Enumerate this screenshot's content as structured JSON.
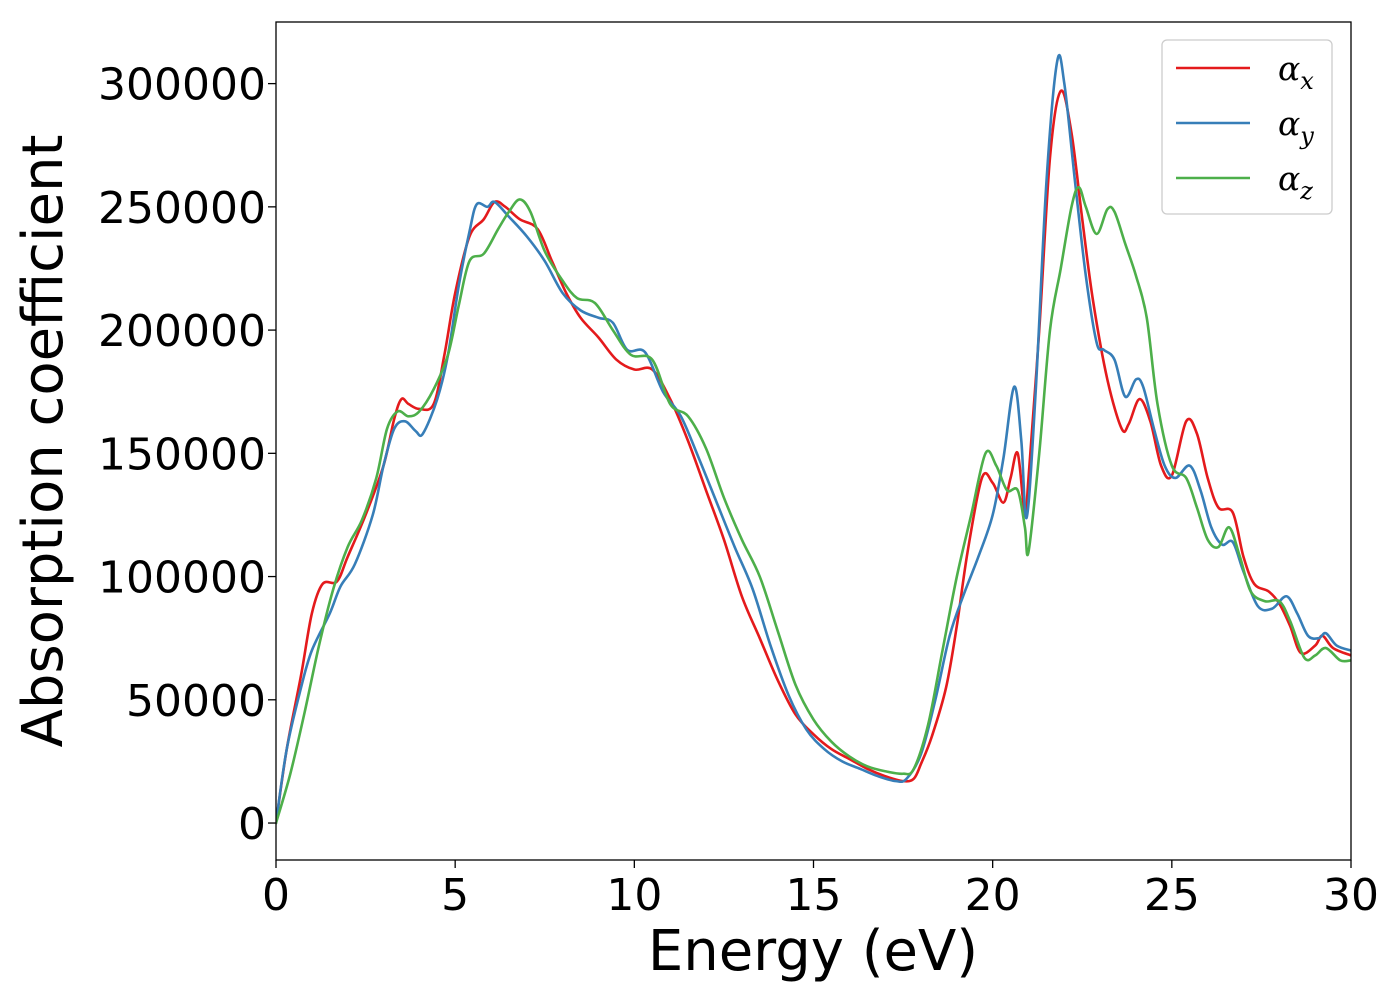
{
  "chart_data": {
    "type": "line",
    "title": "",
    "xlabel": "Energy (eV)",
    "ylabel": "Absorption coefficient",
    "xlim": [
      0,
      30
    ],
    "ylim": [
      -15000,
      325000
    ],
    "xticks": [
      0,
      5,
      10,
      15,
      20,
      25,
      30
    ],
    "yticks": [
      0,
      50000,
      100000,
      150000,
      200000,
      250000,
      300000
    ],
    "grid": false,
    "legend_position": "top-right",
    "series": [
      {
        "name": "α_x",
        "color": "#e41a1c",
        "points": [
          [
            0,
            0
          ],
          [
            0.3,
            30000
          ],
          [
            0.7,
            60000
          ],
          [
            1.0,
            85000
          ],
          [
            1.3,
            97000
          ],
          [
            1.7,
            98000
          ],
          [
            2.0,
            108000
          ],
          [
            2.5,
            125000
          ],
          [
            3.0,
            145000
          ],
          [
            3.3,
            164000
          ],
          [
            3.5,
            172000
          ],
          [
            3.7,
            170000
          ],
          [
            4.0,
            168000
          ],
          [
            4.4,
            170000
          ],
          [
            4.7,
            190000
          ],
          [
            5.0,
            215000
          ],
          [
            5.4,
            238000
          ],
          [
            5.8,
            245000
          ],
          [
            6.1,
            252000
          ],
          [
            6.4,
            250000
          ],
          [
            6.8,
            245000
          ],
          [
            7.3,
            241000
          ],
          [
            7.7,
            228000
          ],
          [
            8.1,
            215000
          ],
          [
            8.5,
            205000
          ],
          [
            9.0,
            197000
          ],
          [
            9.5,
            188000
          ],
          [
            10.0,
            184000
          ],
          [
            10.5,
            184000
          ],
          [
            11.0,
            172000
          ],
          [
            11.5,
            155000
          ],
          [
            12.0,
            135000
          ],
          [
            12.5,
            115000
          ],
          [
            13.0,
            92000
          ],
          [
            13.5,
            75000
          ],
          [
            14.0,
            58000
          ],
          [
            14.5,
            44000
          ],
          [
            15.0,
            36000
          ],
          [
            15.5,
            30000
          ],
          [
            16.0,
            26000
          ],
          [
            16.5,
            22000
          ],
          [
            17.0,
            19000
          ],
          [
            17.5,
            17000
          ],
          [
            17.8,
            18000
          ],
          [
            18.0,
            24000
          ],
          [
            18.3,
            35000
          ],
          [
            18.7,
            55000
          ],
          [
            19.0,
            80000
          ],
          [
            19.3,
            110000
          ],
          [
            19.7,
            140000
          ],
          [
            20.0,
            138000
          ],
          [
            20.3,
            130000
          ],
          [
            20.5,
            140000
          ],
          [
            20.7,
            150000
          ],
          [
            20.9,
            125000
          ],
          [
            21.0,
            140000
          ],
          [
            21.3,
            200000
          ],
          [
            21.6,
            270000
          ],
          [
            21.9,
            297000
          ],
          [
            22.2,
            280000
          ],
          [
            22.5,
            245000
          ],
          [
            22.8,
            212000
          ],
          [
            23.2,
            180000
          ],
          [
            23.6,
            160000
          ],
          [
            23.8,
            162000
          ],
          [
            24.1,
            172000
          ],
          [
            24.4,
            163000
          ],
          [
            24.7,
            145000
          ],
          [
            25.0,
            141000
          ],
          [
            25.4,
            163000
          ],
          [
            25.7,
            158000
          ],
          [
            26.0,
            140000
          ],
          [
            26.3,
            128000
          ],
          [
            26.7,
            126000
          ],
          [
            27.0,
            108000
          ],
          [
            27.3,
            97000
          ],
          [
            27.7,
            94000
          ],
          [
            28.0,
            89000
          ],
          [
            28.3,
            80000
          ],
          [
            28.6,
            69000
          ],
          [
            29.0,
            72000
          ],
          [
            29.2,
            76000
          ],
          [
            29.5,
            71000
          ],
          [
            30.0,
            68000
          ]
        ]
      },
      {
        "name": "α_y",
        "color": "#377eb8",
        "points": [
          [
            0,
            0
          ],
          [
            0.3,
            30000
          ],
          [
            0.7,
            55000
          ],
          [
            1.0,
            70000
          ],
          [
            1.5,
            85000
          ],
          [
            1.8,
            96000
          ],
          [
            2.2,
            105000
          ],
          [
            2.7,
            125000
          ],
          [
            3.0,
            145000
          ],
          [
            3.3,
            160000
          ],
          [
            3.6,
            163000
          ],
          [
            3.9,
            159000
          ],
          [
            4.1,
            158000
          ],
          [
            4.5,
            172000
          ],
          [
            4.8,
            190000
          ],
          [
            5.1,
            218000
          ],
          [
            5.4,
            240000
          ],
          [
            5.6,
            251000
          ],
          [
            5.9,
            250000
          ],
          [
            6.1,
            252000
          ],
          [
            6.5,
            246000
          ],
          [
            7.0,
            238000
          ],
          [
            7.5,
            228000
          ],
          [
            8.0,
            215000
          ],
          [
            8.5,
            208000
          ],
          [
            9.0,
            205000
          ],
          [
            9.4,
            203000
          ],
          [
            9.8,
            192000
          ],
          [
            10.3,
            191000
          ],
          [
            10.8,
            175000
          ],
          [
            11.3,
            165000
          ],
          [
            11.8,
            148000
          ],
          [
            12.3,
            130000
          ],
          [
            12.8,
            112000
          ],
          [
            13.3,
            95000
          ],
          [
            13.8,
            72000
          ],
          [
            14.3,
            52000
          ],
          [
            14.8,
            38000
          ],
          [
            15.3,
            30000
          ],
          [
            15.8,
            25000
          ],
          [
            16.3,
            22000
          ],
          [
            16.8,
            19000
          ],
          [
            17.3,
            17000
          ],
          [
            17.6,
            18000
          ],
          [
            18.0,
            28000
          ],
          [
            18.4,
            50000
          ],
          [
            18.8,
            76000
          ],
          [
            19.2,
            93000
          ],
          [
            19.6,
            108000
          ],
          [
            20.0,
            125000
          ],
          [
            20.3,
            148000
          ],
          [
            20.6,
            177000
          ],
          [
            20.8,
            155000
          ],
          [
            20.95,
            124000
          ],
          [
            21.2,
            175000
          ],
          [
            21.5,
            260000
          ],
          [
            21.8,
            309000
          ],
          [
            22.0,
            300000
          ],
          [
            22.3,
            260000
          ],
          [
            22.6,
            222000
          ],
          [
            22.9,
            195000
          ],
          [
            23.1,
            192000
          ],
          [
            23.4,
            188000
          ],
          [
            23.7,
            173000
          ],
          [
            24.0,
            180000
          ],
          [
            24.2,
            177000
          ],
          [
            24.5,
            160000
          ],
          [
            24.8,
            145000
          ],
          [
            25.1,
            140000
          ],
          [
            25.5,
            145000
          ],
          [
            25.8,
            135000
          ],
          [
            26.1,
            120000
          ],
          [
            26.4,
            113000
          ],
          [
            26.7,
            114000
          ],
          [
            27.0,
            102000
          ],
          [
            27.4,
            88000
          ],
          [
            27.8,
            87000
          ],
          [
            28.2,
            92000
          ],
          [
            28.5,
            85000
          ],
          [
            28.8,
            76000
          ],
          [
            29.1,
            75000
          ],
          [
            29.3,
            77000
          ],
          [
            29.6,
            72000
          ],
          [
            30.0,
            70000
          ]
        ]
      },
      {
        "name": "α_z",
        "color": "#4daf4a",
        "points": [
          [
            0,
            0
          ],
          [
            0.4,
            20000
          ],
          [
            0.8,
            45000
          ],
          [
            1.2,
            72000
          ],
          [
            1.6,
            95000
          ],
          [
            2.0,
            112000
          ],
          [
            2.4,
            123000
          ],
          [
            2.8,
            140000
          ],
          [
            3.1,
            160000
          ],
          [
            3.4,
            167000
          ],
          [
            3.7,
            165000
          ],
          [
            4.0,
            167000
          ],
          [
            4.4,
            176000
          ],
          [
            4.8,
            190000
          ],
          [
            5.1,
            210000
          ],
          [
            5.4,
            228000
          ],
          [
            5.8,
            231000
          ],
          [
            6.2,
            241000
          ],
          [
            6.5,
            248000
          ],
          [
            6.8,
            253000
          ],
          [
            7.1,
            248000
          ],
          [
            7.5,
            232000
          ],
          [
            8.0,
            220000
          ],
          [
            8.4,
            213000
          ],
          [
            8.9,
            211000
          ],
          [
            9.4,
            200000
          ],
          [
            9.9,
            190000
          ],
          [
            10.5,
            188000
          ],
          [
            11.0,
            170000
          ],
          [
            11.5,
            165000
          ],
          [
            12.0,
            152000
          ],
          [
            12.5,
            132000
          ],
          [
            13.0,
            115000
          ],
          [
            13.5,
            100000
          ],
          [
            14.0,
            78000
          ],
          [
            14.5,
            56000
          ],
          [
            15.0,
            42000
          ],
          [
            15.5,
            33000
          ],
          [
            16.0,
            27000
          ],
          [
            16.5,
            23000
          ],
          [
            17.0,
            21000
          ],
          [
            17.5,
            20000
          ],
          [
            17.8,
            22000
          ],
          [
            18.2,
            40000
          ],
          [
            18.6,
            70000
          ],
          [
            19.0,
            100000
          ],
          [
            19.4,
            125000
          ],
          [
            19.8,
            150000
          ],
          [
            20.1,
            145000
          ],
          [
            20.4,
            135000
          ],
          [
            20.7,
            135000
          ],
          [
            20.9,
            120000
          ],
          [
            21.0,
            110000
          ],
          [
            21.3,
            150000
          ],
          [
            21.6,
            200000
          ],
          [
            21.9,
            225000
          ],
          [
            22.2,
            250000
          ],
          [
            22.4,
            258000
          ],
          [
            22.6,
            250000
          ],
          [
            22.9,
            239000
          ],
          [
            23.2,
            249000
          ],
          [
            23.4,
            248000
          ],
          [
            23.7,
            235000
          ],
          [
            24.0,
            222000
          ],
          [
            24.3,
            205000
          ],
          [
            24.6,
            170000
          ],
          [
            25.0,
            145000
          ],
          [
            25.4,
            140000
          ],
          [
            25.7,
            128000
          ],
          [
            26.0,
            115000
          ],
          [
            26.3,
            112000
          ],
          [
            26.6,
            120000
          ],
          [
            26.9,
            108000
          ],
          [
            27.2,
            94000
          ],
          [
            27.6,
            90000
          ],
          [
            28.0,
            90000
          ],
          [
            28.3,
            82000
          ],
          [
            28.7,
            67000
          ],
          [
            29.0,
            68000
          ],
          [
            29.3,
            71000
          ],
          [
            29.7,
            66000
          ],
          [
            30.0,
            66000
          ]
        ]
      }
    ]
  }
}
